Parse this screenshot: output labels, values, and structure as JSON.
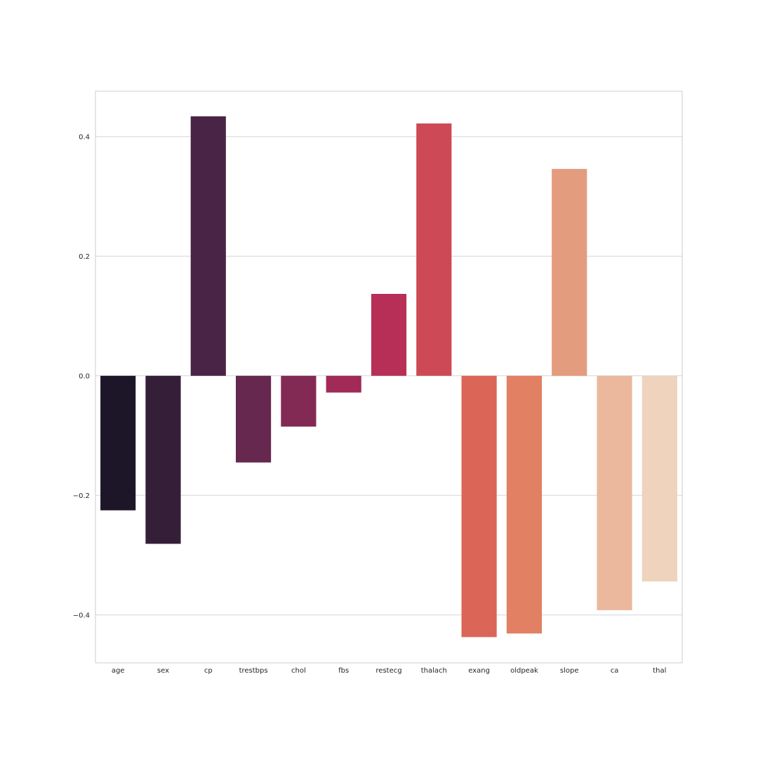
{
  "chart_data": {
    "type": "bar",
    "title": "",
    "xlabel": "",
    "ylabel": "",
    "categories": [
      "age",
      "sex",
      "cp",
      "trestbps",
      "chol",
      "fbs",
      "restecg",
      "thalach",
      "exang",
      "oldpeak",
      "slope",
      "ca",
      "thal"
    ],
    "values": [
      -0.225,
      -0.281,
      0.434,
      -0.145,
      -0.085,
      -0.028,
      0.137,
      0.422,
      -0.437,
      -0.431,
      0.346,
      -0.392,
      -0.344
    ],
    "colors": [
      "#1d1628",
      "#341e38",
      "#4a2447",
      "#66284f",
      "#832a54",
      "#a12a57",
      "#b72f56",
      "#cc4955",
      "#db6657",
      "#e18062",
      "#e49c7e",
      "#ebb89e",
      "#efd3bd"
    ],
    "yticks": [
      -0.4,
      -0.2,
      0.0,
      0.2,
      0.4
    ],
    "ytick_labels": [
      "−0.4",
      "−0.2",
      "0.0",
      "0.2",
      "0.4"
    ],
    "ylim": [
      -0.48,
      0.476
    ],
    "grid": "horizontal",
    "grid_color": "#d5d5d5",
    "frame_color": "#cccccc"
  }
}
